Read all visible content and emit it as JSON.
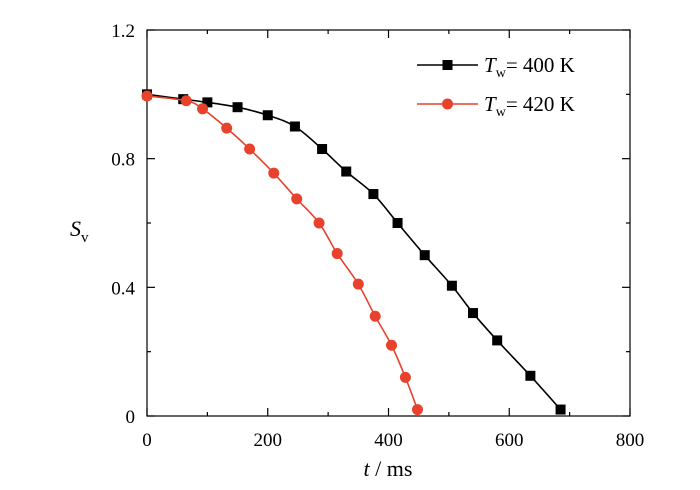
{
  "chart_data": {
    "type": "line",
    "title": "",
    "xlabel": {
      "var": "t",
      "sep": " / ",
      "unit": "ms"
    },
    "ylabel": {
      "var": "S",
      "sub": "v"
    },
    "xlim": [
      0,
      800
    ],
    "ylim": [
      0,
      1.2
    ],
    "xticks": [
      0,
      200,
      400,
      600,
      800
    ],
    "xtick_labels": [
      "0",
      "200",
      "400",
      "600",
      "800"
    ],
    "yticks": [
      0,
      0.4,
      0.8,
      1.2
    ],
    "ytick_labels": [
      "0",
      "0.4",
      "0.8",
      "1.2"
    ],
    "grid": false,
    "legend_position": "top-right",
    "series": [
      {
        "name": "Tw= 400 K",
        "legend": {
          "var": "T",
          "sub": "w",
          "rest": "= 400 K"
        },
        "color": "#000000",
        "marker": "square",
        "x": [
          0,
          60,
          100,
          150,
          200,
          245,
          290,
          330,
          375,
          415,
          460,
          505,
          540,
          580,
          635,
          685
        ],
        "y": [
          1.0,
          0.985,
          0.975,
          0.96,
          0.935,
          0.9,
          0.83,
          0.76,
          0.69,
          0.6,
          0.5,
          0.405,
          0.32,
          0.235,
          0.125,
          0.02
        ]
      },
      {
        "name": "Tw= 420 K",
        "legend": {
          "var": "T",
          "sub": "w",
          "rest": "= 420 K"
        },
        "color": "#e8412c",
        "marker": "circle",
        "x": [
          0,
          65,
          92,
          132,
          170,
          210,
          248,
          285,
          315,
          350,
          378,
          405,
          428,
          448
        ],
        "y": [
          0.995,
          0.98,
          0.955,
          0.895,
          0.83,
          0.755,
          0.675,
          0.6,
          0.505,
          0.41,
          0.31,
          0.22,
          0.12,
          0.02
        ]
      }
    ]
  }
}
